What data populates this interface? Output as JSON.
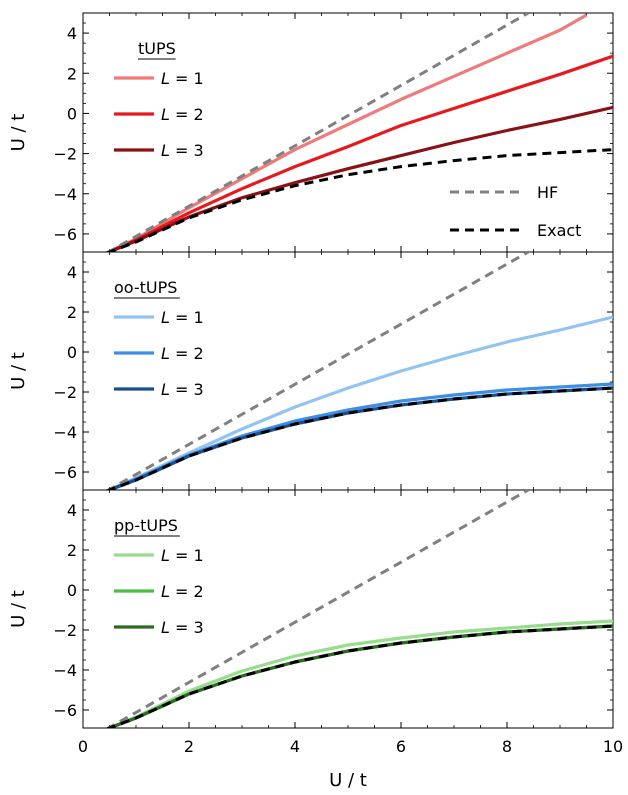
{
  "chart_data": [
    {
      "type": "line",
      "panel": "top",
      "xlim": [
        0,
        10
      ],
      "ylim": [
        -6.9,
        5
      ],
      "xticks": [
        0,
        2,
        4,
        6,
        8,
        10
      ],
      "yticks": [
        4,
        2,
        0,
        -2,
        -4,
        -6
      ],
      "ylabel": "U / t",
      "legend_title": "tUPS",
      "legend_placement": "top-left",
      "grid": false,
      "series": [
        {
          "name": "L = 1",
          "name_var": "L",
          "name_rhs": "= 1",
          "color": "#f07a7a",
          "style": "solid",
          "x": [
            0.45,
            1,
            2,
            3,
            4,
            5,
            6,
            7,
            8,
            9,
            9.5
          ],
          "y": [
            -6.95,
            -6.25,
            -4.7,
            -3.25,
            -1.8,
            -0.55,
            0.7,
            1.85,
            3.0,
            4.15,
            4.9
          ]
        },
        {
          "name": "L = 2",
          "name_var": "L",
          "name_rhs": "= 2",
          "color": "#e8191c",
          "style": "solid",
          "x": [
            0.45,
            1,
            2,
            3,
            4,
            5,
            6,
            7,
            8,
            9,
            10
          ],
          "y": [
            -6.95,
            -6.3,
            -4.95,
            -3.75,
            -2.65,
            -1.65,
            -0.6,
            0.25,
            1.1,
            1.95,
            2.85
          ]
        },
        {
          "name": "L = 3",
          "name_var": "L",
          "name_rhs": "= 3",
          "color": "#8b1115",
          "style": "solid",
          "x": [
            0.45,
            1,
            2,
            3,
            4,
            5,
            6,
            7,
            8,
            9,
            10
          ],
          "y": [
            -6.95,
            -6.35,
            -5.15,
            -4.2,
            -3.45,
            -2.75,
            -2.1,
            -1.45,
            -0.85,
            -0.3,
            0.3
          ]
        },
        {
          "name": "HF",
          "color": "#808080",
          "style": "dashed",
          "x": [
            0.45,
            8.4
          ],
          "y": [
            -6.95,
            5.0
          ]
        },
        {
          "name": "Exact",
          "color": "#000000",
          "style": "dashed",
          "x": [
            0.45,
            1,
            2,
            3,
            4,
            5,
            6,
            7,
            8,
            9,
            10
          ],
          "y": [
            -6.95,
            -6.4,
            -5.2,
            -4.3,
            -3.6,
            -3.05,
            -2.65,
            -2.35,
            -2.1,
            -1.95,
            -1.8
          ]
        }
      ]
    },
    {
      "type": "line",
      "panel": "middle",
      "xlim": [
        0,
        10
      ],
      "ylim": [
        -6.9,
        5
      ],
      "xticks": [
        0,
        2,
        4,
        6,
        8,
        10
      ],
      "yticks": [
        4,
        2,
        0,
        -2,
        -4,
        -6
      ],
      "ylabel": "U / t",
      "legend_title": "oo-tUPS",
      "legend_placement": "top-left",
      "grid": false,
      "series": [
        {
          "name": "L = 1",
          "name_var": "L",
          "name_rhs": "= 1",
          "color": "#91c4f2",
          "style": "solid",
          "x": [
            0.45,
            1,
            2,
            3,
            4,
            5,
            6,
            7,
            8,
            9,
            10
          ],
          "y": [
            -6.95,
            -6.3,
            -5.05,
            -3.85,
            -2.75,
            -1.8,
            -0.95,
            -0.2,
            0.5,
            1.1,
            1.75
          ]
        },
        {
          "name": "L = 2",
          "name_var": "L",
          "name_rhs": "= 2",
          "color": "#3d8fe6",
          "style": "solid",
          "x": [
            0.45,
            1,
            2,
            3,
            4,
            5,
            6,
            7,
            8,
            9,
            10
          ],
          "y": [
            -6.95,
            -6.35,
            -5.15,
            -4.2,
            -3.45,
            -2.9,
            -2.45,
            -2.15,
            -1.9,
            -1.75,
            -1.6
          ]
        },
        {
          "name": "L = 3",
          "name_var": "L",
          "name_rhs": "= 3",
          "color": "#1c4e8a",
          "style": "solid",
          "x": [
            0.45,
            1,
            2,
            3,
            4,
            5,
            6,
            7,
            8,
            9,
            10
          ],
          "y": [
            -6.95,
            -6.4,
            -5.2,
            -4.3,
            -3.6,
            -3.05,
            -2.65,
            -2.35,
            -2.1,
            -1.95,
            -1.8
          ]
        },
        {
          "name": "HF",
          "color": "#808080",
          "style": "dashed",
          "x": [
            0.45,
            8.4
          ],
          "y": [
            -6.95,
            5.0
          ]
        },
        {
          "name": "Exact",
          "color": "#000000",
          "style": "dashed",
          "x": [
            0.45,
            1,
            2,
            3,
            4,
            5,
            6,
            7,
            8,
            9,
            10
          ],
          "y": [
            -6.95,
            -6.4,
            -5.2,
            -4.3,
            -3.6,
            -3.05,
            -2.65,
            -2.35,
            -2.1,
            -1.95,
            -1.8
          ]
        }
      ]
    },
    {
      "type": "line",
      "panel": "bottom",
      "xlim": [
        0,
        10
      ],
      "ylim": [
        -6.9,
        5
      ],
      "xticks": [
        0,
        2,
        4,
        6,
        8,
        10
      ],
      "yticks": [
        4,
        2,
        0,
        -2,
        -4,
        -6
      ],
      "xlabel": "U / t",
      "ylabel": "U / t",
      "legend_title": "pp-tUPS",
      "legend_placement": "top-left",
      "grid": false,
      "series": [
        {
          "name": "L = 1",
          "name_var": "L",
          "name_rhs": "= 1",
          "color": "#98dc8e",
          "style": "solid",
          "x": [
            0.45,
            1,
            2,
            3,
            4,
            5,
            6,
            7,
            8,
            9,
            10
          ],
          "y": [
            -6.95,
            -6.35,
            -5.05,
            -4.05,
            -3.3,
            -2.75,
            -2.4,
            -2.1,
            -1.9,
            -1.7,
            -1.55
          ]
        },
        {
          "name": "L = 2",
          "name_var": "L",
          "name_rhs": "= 2",
          "color": "#4bbf42",
          "style": "solid",
          "x": [
            0.45,
            1,
            2,
            3,
            4,
            5,
            6,
            7,
            8,
            9,
            10
          ],
          "y": [
            -6.95,
            -6.4,
            -5.2,
            -4.3,
            -3.6,
            -3.05,
            -2.65,
            -2.35,
            -2.1,
            -1.95,
            -1.8
          ]
        },
        {
          "name": "L = 3",
          "name_var": "L",
          "name_rhs": "= 3",
          "color": "#2e6b22",
          "style": "solid",
          "x": [
            0.45,
            1,
            2,
            3,
            4,
            5,
            6,
            7,
            8,
            9,
            10
          ],
          "y": [
            -6.95,
            -6.4,
            -5.2,
            -4.3,
            -3.6,
            -3.05,
            -2.65,
            -2.35,
            -2.1,
            -1.95,
            -1.8
          ]
        },
        {
          "name": "HF",
          "color": "#808080",
          "style": "dashed",
          "x": [
            0.45,
            8.4
          ],
          "y": [
            -6.95,
            5.0
          ]
        },
        {
          "name": "Exact",
          "color": "#000000",
          "style": "dashed",
          "x": [
            0.45,
            1,
            2,
            3,
            4,
            5,
            6,
            7,
            8,
            9,
            10
          ],
          "y": [
            -6.95,
            -6.4,
            -5.2,
            -4.3,
            -3.6,
            -3.05,
            -2.65,
            -2.35,
            -2.1,
            -1.95,
            -1.8
          ]
        }
      ]
    }
  ],
  "shared_legend": {
    "placement": "bottom-right of top panel",
    "items": [
      {
        "label": "HF",
        "color": "#808080",
        "style": "dashed"
      },
      {
        "label": "Exact",
        "color": "#000000",
        "style": "dashed"
      }
    ]
  }
}
